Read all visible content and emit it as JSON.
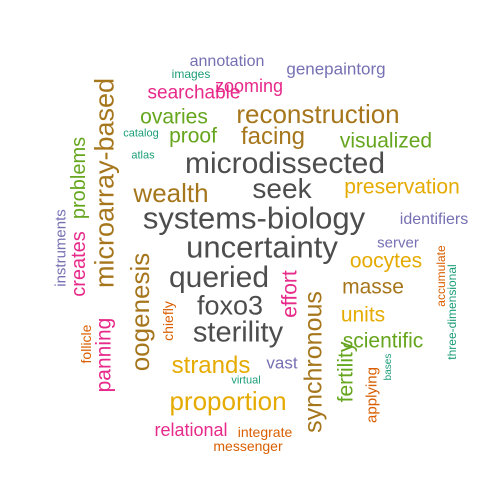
{
  "palette": {
    "gray": "#4d4d4d",
    "brown": "#a6761d",
    "green": "#66a61e",
    "teal": "#1b9e77",
    "orange": "#d95f02",
    "purple": "#7570b3",
    "magenta": "#e7298a",
    "gold": "#e6ab02"
  },
  "words": [
    {
      "text": "annotation",
      "color": "#7570b3"
    },
    {
      "text": "genepaintorg",
      "color": "#7570b3"
    },
    {
      "text": "images",
      "color": "#1b9e77"
    },
    {
      "text": "zooming",
      "color": "#e7298a"
    },
    {
      "text": "searchable",
      "color": "#e7298a"
    },
    {
      "text": "microarray-based",
      "color": "#a6761d"
    },
    {
      "text": "ovaries",
      "color": "#66a61e"
    },
    {
      "text": "reconstruction",
      "color": "#a6761d"
    },
    {
      "text": "catalog",
      "color": "#1b9e77"
    },
    {
      "text": "proof",
      "color": "#66a61e"
    },
    {
      "text": "facing",
      "color": "#a6761d"
    },
    {
      "text": "visualized",
      "color": "#66a61e"
    },
    {
      "text": "atlas",
      "color": "#1b9e77"
    },
    {
      "text": "problems",
      "color": "#66a61e"
    },
    {
      "text": "microdissected",
      "color": "#4d4d4d"
    },
    {
      "text": "wealth",
      "color": "#a6761d"
    },
    {
      "text": "seek",
      "color": "#4d4d4d"
    },
    {
      "text": "preservation",
      "color": "#e6ab02"
    },
    {
      "text": "systems-biology",
      "color": "#4d4d4d"
    },
    {
      "text": "identifiers",
      "color": "#7570b3"
    },
    {
      "text": "creates",
      "color": "#e7298a"
    },
    {
      "text": "instruments",
      "color": "#7570b3"
    },
    {
      "text": "uncertainty",
      "color": "#4d4d4d"
    },
    {
      "text": "server",
      "color": "#7570b3"
    },
    {
      "text": "oogenesis",
      "color": "#a6761d"
    },
    {
      "text": "oocytes",
      "color": "#e6ab02"
    },
    {
      "text": "accumulate",
      "color": "#d95f02"
    },
    {
      "text": "queried",
      "color": "#4d4d4d"
    },
    {
      "text": "effort",
      "color": "#e7298a"
    },
    {
      "text": "synchronous",
      "color": "#a6761d"
    },
    {
      "text": "masse",
      "color": "#a6761d"
    },
    {
      "text": "three-dimensional",
      "color": "#1b9e77"
    },
    {
      "text": "foxo3",
      "color": "#4d4d4d"
    },
    {
      "text": "chiefly",
      "color": "#d95f02"
    },
    {
      "text": "units",
      "color": "#e6ab02"
    },
    {
      "text": "follicle",
      "color": "#d95f02"
    },
    {
      "text": "sterility",
      "color": "#4d4d4d"
    },
    {
      "text": "scientific",
      "color": "#66a61e"
    },
    {
      "text": "panning",
      "color": "#e7298a"
    },
    {
      "text": "strands",
      "color": "#e6ab02"
    },
    {
      "text": "vast",
      "color": "#7570b3"
    },
    {
      "text": "fertility",
      "color": "#66a61e"
    },
    {
      "text": "bases",
      "color": "#1b9e77"
    },
    {
      "text": "applying",
      "color": "#d95f02"
    },
    {
      "text": "virtual",
      "color": "#1b9e77"
    },
    {
      "text": "proportion",
      "color": "#e6ab02"
    },
    {
      "text": "relational",
      "color": "#e7298a"
    },
    {
      "text": "integrate",
      "color": "#d95f02"
    },
    {
      "text": "messenger",
      "color": "#d95f02"
    }
  ]
}
